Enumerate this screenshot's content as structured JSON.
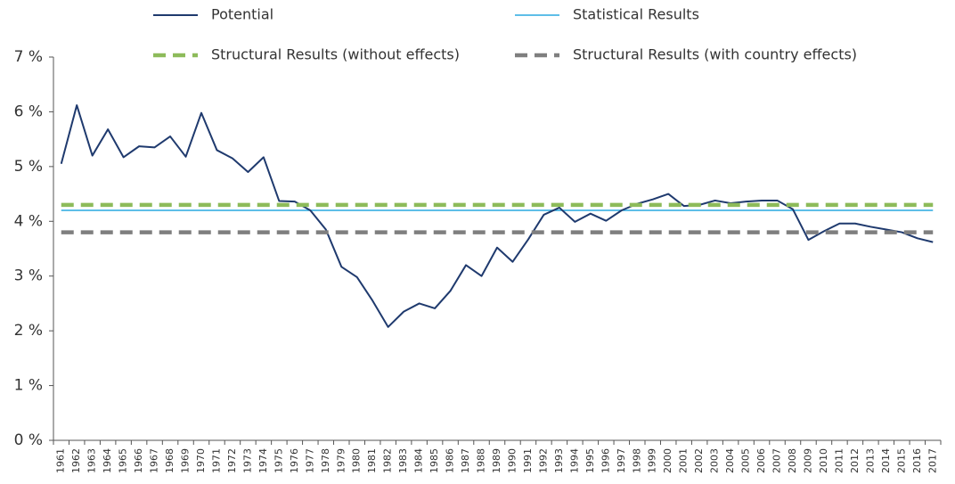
{
  "chart_data": {
    "type": "line",
    "categories": [
      "1961",
      "1962",
      "1963",
      "1964",
      "1965",
      "1966",
      "1967",
      "1968",
      "1969",
      "1970",
      "1971",
      "1972",
      "1973",
      "1974",
      "1975",
      "1976",
      "1977",
      "1978",
      "1979",
      "1980",
      "1981",
      "1982",
      "1983",
      "1984",
      "1985",
      "1986",
      "1987",
      "1988",
      "1989",
      "1990",
      "1991",
      "1992",
      "1993",
      "1994",
      "1995",
      "1996",
      "1997",
      "1998",
      "1999",
      "2000",
      "2001",
      "2002",
      "2003",
      "2004",
      "2005",
      "2006",
      "2007",
      "2008",
      "2009",
      "2010",
      "2011",
      "2012",
      "2013",
      "2014",
      "2015",
      "2016",
      "2017"
    ],
    "series": [
      {
        "name": "Potential",
        "color": "#1f3a6e",
        "dashed": false,
        "values": [
          5.05,
          6.12,
          5.2,
          5.68,
          5.17,
          5.37,
          5.35,
          5.55,
          5.18,
          5.98,
          5.3,
          5.15,
          4.9,
          5.17,
          4.37,
          4.36,
          4.2,
          3.85,
          3.17,
          2.98,
          2.55,
          2.07,
          2.35,
          2.5,
          2.41,
          2.73,
          3.2,
          3.0,
          3.52,
          3.26,
          3.67,
          4.12,
          4.25,
          3.99,
          4.14,
          4.01,
          4.2,
          4.32,
          4.4,
          4.5,
          4.28,
          4.3,
          4.38,
          4.33,
          4.36,
          4.38,
          4.38,
          4.22,
          3.66,
          3.82,
          3.96,
          3.96,
          3.9,
          3.85,
          3.8,
          3.69,
          3.62
        ]
      },
      {
        "name": "Statistical Results",
        "color": "#29a8e0",
        "dashed": false,
        "values": [
          4.2,
          4.2,
          4.2,
          4.2,
          4.2,
          4.2,
          4.2,
          4.2,
          4.2,
          4.2,
          4.2,
          4.2,
          4.2,
          4.2,
          4.2,
          4.2,
          4.2,
          4.2,
          4.2,
          4.2,
          4.2,
          4.2,
          4.2,
          4.2,
          4.2,
          4.2,
          4.2,
          4.2,
          4.2,
          4.2,
          4.2,
          4.2,
          4.2,
          4.2,
          4.2,
          4.2,
          4.2,
          4.2,
          4.2,
          4.2,
          4.2,
          4.2,
          4.2,
          4.2,
          4.2,
          4.2,
          4.2,
          4.2,
          4.2,
          4.2,
          4.2,
          4.2,
          4.2,
          4.2,
          4.2,
          4.2,
          4.2
        ]
      },
      {
        "name": "Structural Results (without effects)",
        "color": "#8dbb5a",
        "dashed": true,
        "values": [
          4.3,
          4.3,
          4.3,
          4.3,
          4.3,
          4.3,
          4.3,
          4.3,
          4.3,
          4.3,
          4.3,
          4.3,
          4.3,
          4.3,
          4.3,
          4.3,
          4.3,
          4.3,
          4.3,
          4.3,
          4.3,
          4.3,
          4.3,
          4.3,
          4.3,
          4.3,
          4.3,
          4.3,
          4.3,
          4.3,
          4.3,
          4.3,
          4.3,
          4.3,
          4.3,
          4.3,
          4.3,
          4.3,
          4.3,
          4.3,
          4.3,
          4.3,
          4.3,
          4.3,
          4.3,
          4.3,
          4.3,
          4.3,
          4.3,
          4.3,
          4.3,
          4.3,
          4.3,
          4.3,
          4.3,
          4.3,
          4.3
        ]
      },
      {
        "name": "Structural Results (with country effects)",
        "color": "#7f7f7f",
        "dashed": true,
        "values": [
          3.8,
          3.8,
          3.8,
          3.8,
          3.8,
          3.8,
          3.8,
          3.8,
          3.8,
          3.8,
          3.8,
          3.8,
          3.8,
          3.8,
          3.8,
          3.8,
          3.8,
          3.8,
          3.8,
          3.8,
          3.8,
          3.8,
          3.8,
          3.8,
          3.8,
          3.8,
          3.8,
          3.8,
          3.8,
          3.8,
          3.8,
          3.8,
          3.8,
          3.8,
          3.8,
          3.8,
          3.8,
          3.8,
          3.8,
          3.8,
          3.8,
          3.8,
          3.8,
          3.8,
          3.8,
          3.8,
          3.8,
          3.8,
          3.8,
          3.8,
          3.8,
          3.8,
          3.8,
          3.8,
          3.8,
          3.8,
          3.8
        ]
      }
    ],
    "ylim": [
      0,
      7
    ],
    "yticks": [
      {
        "value": 0,
        "label": "0 %"
      },
      {
        "value": 1,
        "label": "1 %"
      },
      {
        "value": 2,
        "label": "2 %"
      },
      {
        "value": 3,
        "label": "3 %"
      },
      {
        "value": 4,
        "label": "4 %"
      },
      {
        "value": 5,
        "label": "5 %"
      },
      {
        "value": 6,
        "label": "6 %"
      },
      {
        "value": 7,
        "label": "7 %"
      }
    ],
    "grid": false,
    "legend": "top"
  }
}
